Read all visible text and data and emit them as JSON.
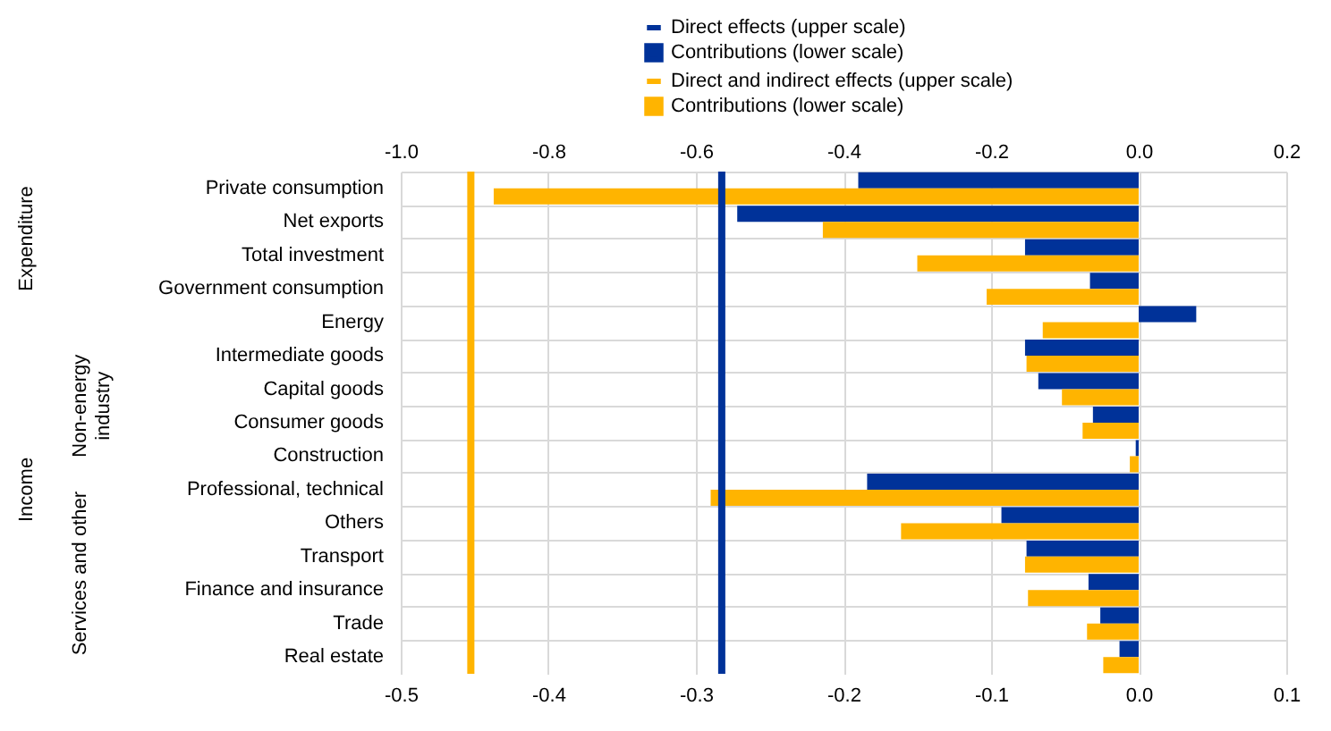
{
  "chart_data": {
    "type": "bar",
    "orientation": "horizontal",
    "categories": [
      "Private consumption",
      "Net exports",
      "Total investment",
      "Government consumption",
      "Energy",
      "Intermediate goods",
      "Capital goods",
      "Consumer goods",
      "Construction",
      "Professional, technical",
      "Others",
      "Transport",
      "Finance and insurance",
      "Trade",
      "Real estate"
    ],
    "series": [
      {
        "name": "Contributions (lower scale)",
        "color": "#003299",
        "values": [
          -0.19,
          -0.272,
          -0.077,
          -0.033,
          0.039,
          -0.077,
          -0.068,
          -0.031,
          -0.002,
          -0.184,
          -0.093,
          -0.076,
          -0.034,
          -0.026,
          -0.013
        ]
      },
      {
        "name": "Contributions (lower scale)",
        "color": "#ffb400",
        "values": [
          -0.437,
          -0.214,
          -0.15,
          -0.103,
          -0.065,
          -0.076,
          -0.052,
          -0.038,
          -0.006,
          -0.29,
          -0.161,
          -0.077,
          -0.075,
          -0.035,
          -0.024
        ]
      }
    ],
    "ref_lines": [
      {
        "axis": "x2",
        "value": -0.565,
        "label": "Direct effects (upper scale)",
        "color": "#003299"
      },
      {
        "axis": "x2",
        "value": -0.905,
        "label": "Direct and indirect effects (upper scale)",
        "color": "#ffb400"
      }
    ],
    "xlim": [
      -0.5,
      0.1
    ],
    "xticks": [
      -0.5,
      -0.4,
      -0.3,
      -0.2,
      -0.1,
      {
        "value": 0,
        "label": "0.0"
      },
      0.1
    ],
    "x2lim": [
      -1.0,
      0.2
    ],
    "x2ticks": [
      {
        "value": -1,
        "label": "-1.0"
      },
      -0.8,
      -0.6,
      -0.4,
      -0.2,
      {
        "value": 0,
        "label": "0.0"
      },
      0.2
    ],
    "grid": true,
    "legend": "top",
    "annotations": [
      "Expenditure",
      "Income",
      "Non-energy industry",
      "Services and other"
    ]
  }
}
